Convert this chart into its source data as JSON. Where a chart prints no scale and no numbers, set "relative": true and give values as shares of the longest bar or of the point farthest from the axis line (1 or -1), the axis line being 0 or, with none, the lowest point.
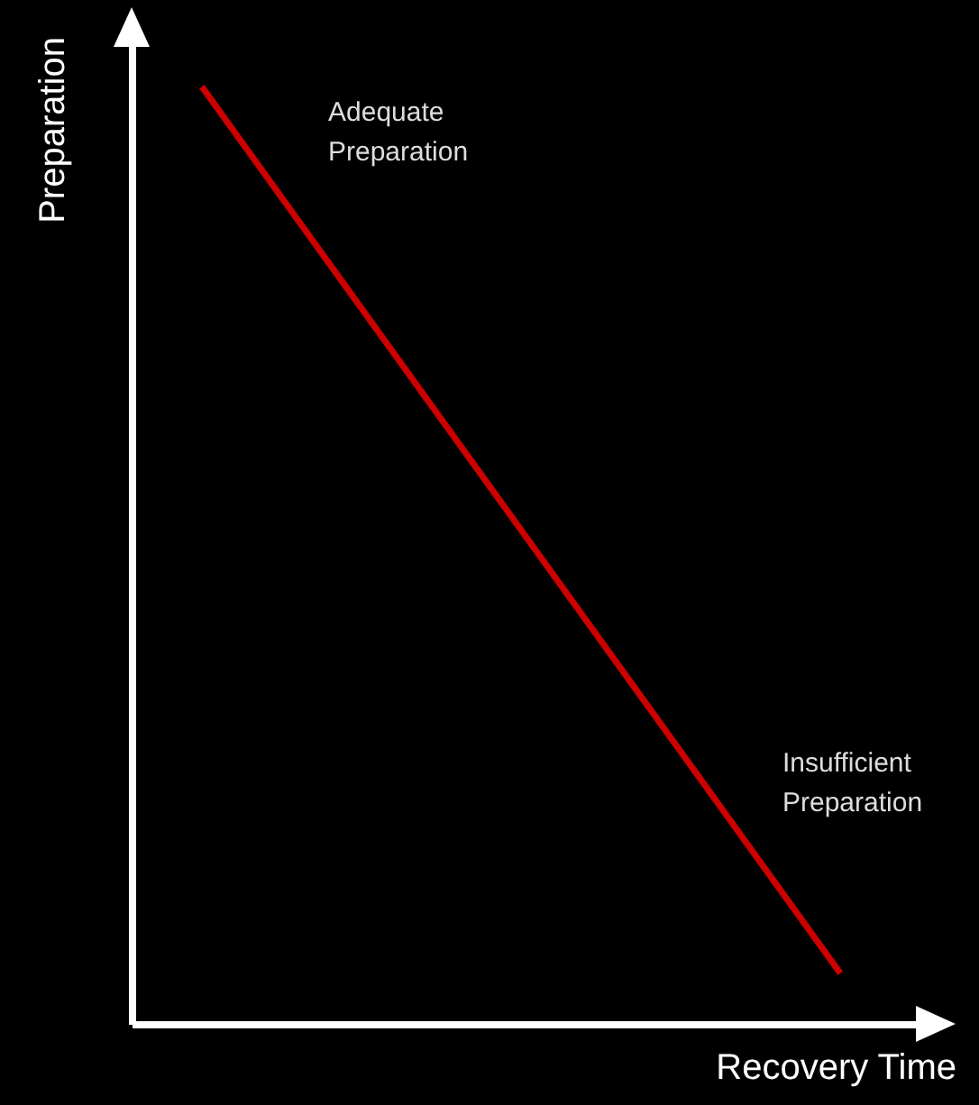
{
  "chart_data": {
    "type": "line",
    "relative": true,
    "xlabel": "Recovery Time",
    "ylabel": "Preparation",
    "categories": [
      null,
      null
    ],
    "series": [
      {
        "color": "#cc0000",
        "values": [
          1,
          0.054
        ]
      }
    ],
    "annotations": [
      "Adequate Preparation",
      "Insufficient Preparation"
    ]
  }
}
